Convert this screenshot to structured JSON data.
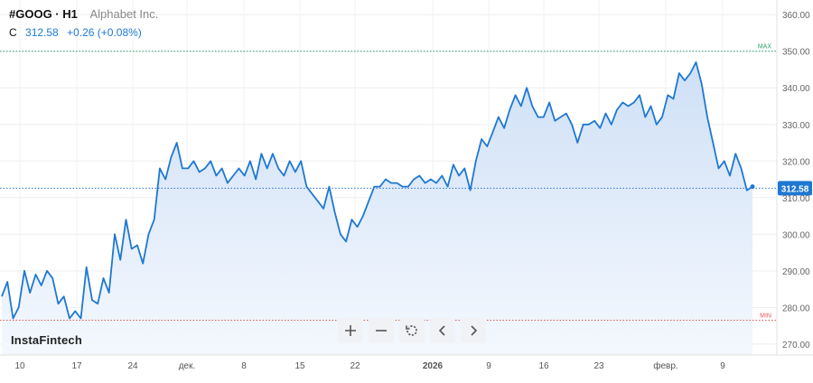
{
  "header": {
    "symbol": "#GOOG · H1",
    "company": "Alphabet Inc.",
    "close_label": "C",
    "close_value": "312.58",
    "change": "+0.26 (+0.08%)"
  },
  "brand": "InstaFintech",
  "toolbar": {
    "zoom_in_icon": "plus-icon",
    "zoom_out_icon": "minus-icon",
    "reset_icon": "reset-icon",
    "back_icon": "chevron-left-icon",
    "forward_icon": "chevron-right-icon"
  },
  "colors": {
    "line": "#1e78d2",
    "fill_top": "#cfe0f6",
    "fill_bottom": "#f4f8fe",
    "max_line": "#2aa06a",
    "min_line": "#e05a5a",
    "current_badge": "#1e78d2"
  },
  "chart_data": {
    "type": "area",
    "y_ticks": [
      "270.00",
      "280.00",
      "290.00",
      "300.00",
      "310.00",
      "320.00",
      "330.00",
      "340.00",
      "350.00",
      "360.00"
    ],
    "x_ticks": [
      "10",
      "17",
      "24",
      "дек.",
      "8",
      "15",
      "22",
      "2026",
      "9",
      "16",
      "23",
      "февр.",
      "9"
    ],
    "ylim": [
      267,
      364
    ],
    "grid": true,
    "max_label": "MAX",
    "max_value": 350,
    "min_label": "MIN",
    "min_value": 276.5,
    "current_value": 312.58,
    "current_label": "312.58",
    "x": [
      0,
      1,
      2,
      3,
      4,
      5,
      6,
      7,
      8,
      9,
      10,
      11,
      12,
      13,
      14,
      15,
      16,
      17,
      18,
      19,
      20,
      21,
      22,
      23,
      24,
      25,
      26,
      27,
      28,
      29,
      30,
      31,
      32,
      33,
      34,
      35,
      36,
      37,
      38,
      39,
      40,
      41,
      42,
      43,
      44,
      45,
      46,
      47,
      48,
      49,
      50,
      51,
      52,
      53,
      54,
      55,
      56,
      57,
      58,
      59,
      60,
      61,
      62,
      63,
      64,
      65,
      66,
      67,
      68,
      69,
      70,
      71,
      72,
      73,
      74,
      75,
      76,
      77,
      78,
      79,
      80,
      81,
      82,
      83,
      84,
      85,
      86,
      87,
      88,
      89,
      90,
      91,
      92,
      93,
      94,
      95,
      96,
      97,
      98,
      99,
      100,
      101,
      102,
      103,
      104,
      105,
      106,
      107,
      108,
      109,
      110,
      111,
      112,
      113,
      114,
      115,
      116,
      117,
      118,
      119,
      120,
      121,
      122,
      123,
      124,
      125,
      126,
      127,
      128,
      129,
      130,
      131,
      132,
      133
    ],
    "values": [
      283,
      287,
      277,
      280,
      290,
      284,
      289,
      286,
      290,
      288,
      281,
      283,
      277,
      279,
      277,
      291,
      282,
      281,
      288,
      284,
      300,
      293,
      304,
      296,
      297,
      292,
      300,
      304,
      318,
      315,
      321,
      325,
      318,
      318,
      320,
      317,
      318,
      320,
      316,
      318,
      314,
      316,
      318,
      316,
      320,
      315,
      322,
      318,
      322,
      318,
      316,
      320,
      317,
      320,
      313,
      311,
      309,
      307,
      313,
      306,
      300,
      298,
      304,
      302,
      305,
      309,
      313,
      313,
      315,
      314,
      314,
      313,
      313,
      315,
      316,
      314,
      315,
      314,
      316,
      313,
      319,
      316,
      318,
      312,
      320,
      326,
      324,
      328,
      332,
      329,
      334,
      338,
      335,
      340,
      335,
      332,
      332,
      336,
      331,
      332,
      333,
      330,
      325,
      330,
      330,
      331,
      329,
      333,
      330,
      334,
      336,
      335,
      336,
      338,
      332,
      335,
      330,
      332,
      338,
      337,
      344,
      342,
      344,
      347,
      341,
      332,
      325,
      318,
      320,
      316,
      322,
      318,
      312,
      313
    ]
  }
}
